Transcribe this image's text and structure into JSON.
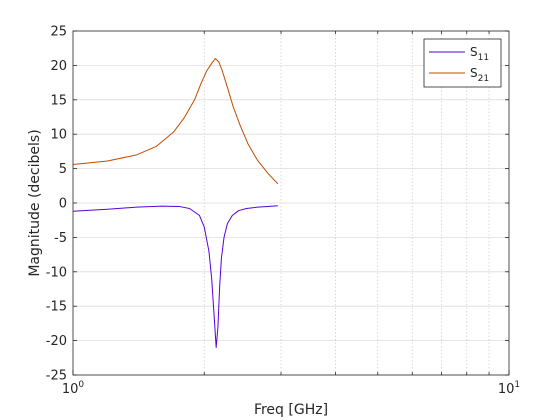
{
  "chart_data": {
    "type": "line",
    "xscale": "log",
    "xlabel": "Freq [GHz]",
    "ylabel": "Magnitude (decibels)",
    "xlim": [
      1,
      10
    ],
    "ylim": [
      -25,
      25
    ],
    "xticks": [
      1,
      10
    ],
    "xtick_labels": [
      {
        "base": "10",
        "exp": "0"
      },
      {
        "base": "10",
        "exp": "1"
      }
    ],
    "yticks": [
      -25,
      -20,
      -15,
      -10,
      -5,
      0,
      5,
      10,
      15,
      20,
      25
    ],
    "grid": true,
    "legend_position": "top-right",
    "series": [
      {
        "name": "S11",
        "legend_main": "S",
        "legend_sub": "11",
        "color": "#5a00d6",
        "x": [
          1.0,
          1.2,
          1.4,
          1.6,
          1.75,
          1.85,
          1.95,
          2.0,
          2.05,
          2.08,
          2.11,
          2.13,
          2.15,
          2.17,
          2.19,
          2.22,
          2.26,
          2.32,
          2.4,
          2.5,
          2.65,
          2.8,
          2.95
        ],
        "y": [
          -1.2,
          -0.9,
          -0.6,
          -0.45,
          -0.5,
          -0.8,
          -1.8,
          -3.5,
          -7.0,
          -11.0,
          -17.0,
          -21.0,
          -18.0,
          -12.0,
          -8.0,
          -5.0,
          -3.0,
          -1.8,
          -1.1,
          -0.8,
          -0.6,
          -0.5,
          -0.4
        ]
      },
      {
        "name": "S21",
        "legend_main": "S",
        "legend_sub": "21",
        "color": "#c44b00",
        "x": [
          1.0,
          1.2,
          1.4,
          1.55,
          1.7,
          1.8,
          1.9,
          1.97,
          2.03,
          2.08,
          2.12,
          2.16,
          2.2,
          2.26,
          2.33,
          2.42,
          2.52,
          2.65,
          2.8,
          2.95
        ],
        "y": [
          5.6,
          6.1,
          7.0,
          8.2,
          10.3,
          12.4,
          15.0,
          17.5,
          19.3,
          20.3,
          21.0,
          20.5,
          19.2,
          16.8,
          14.0,
          11.2,
          8.6,
          6.2,
          4.3,
          2.8
        ]
      }
    ]
  }
}
